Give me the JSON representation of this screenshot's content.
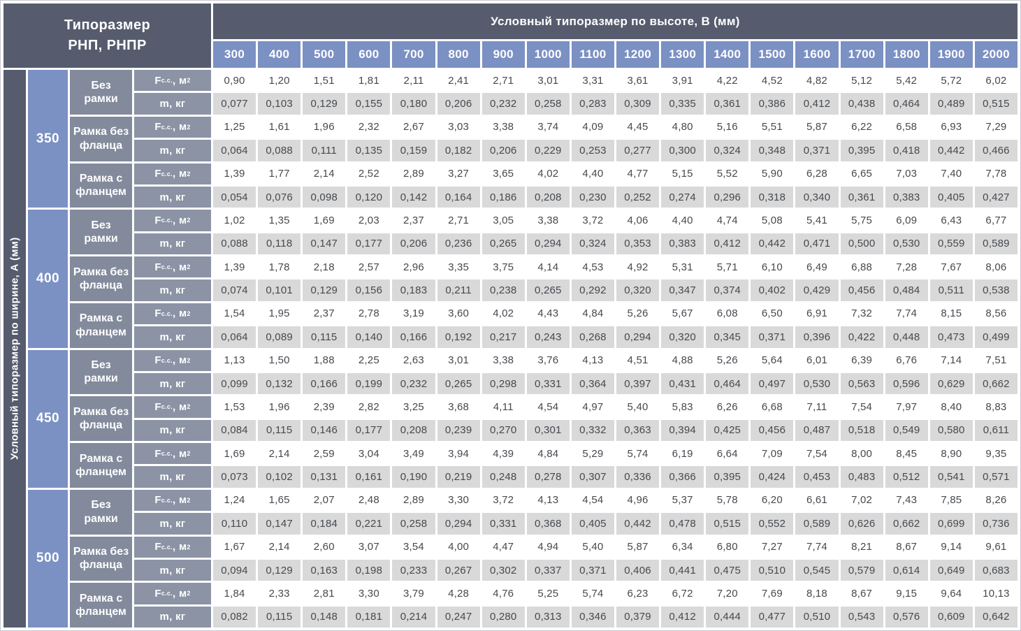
{
  "header": {
    "corner_line1": "Типоразмер",
    "corner_line2": "РНП, РНПР",
    "column_group_title": "Условный типоразмер по высоте, В (мм)",
    "columns": [
      "300",
      "400",
      "500",
      "600",
      "700",
      "800",
      "900",
      "1000",
      "1100",
      "1200",
      "1300",
      "1400",
      "1500",
      "1600",
      "1700",
      "1800",
      "1900",
      "2000"
    ]
  },
  "left_axis_title": "Условный типоразмер по ширине, А (мм)",
  "labels": {
    "f_symbol": "F",
    "f_sub": "с.с.",
    "f_unit": ", м",
    "f_sup": "2",
    "m_label": "m, кг"
  },
  "colors": {
    "dark": "#565c6e",
    "blue": "#7b90c3",
    "frame-gray": "#828a9c",
    "metric-gray": "#8b93a5",
    "row-gray": "#d9d9d9",
    "row-white": "#ffffff",
    "data-text": "#45494e"
  },
  "groups": [
    {
      "width": "350",
      "blocks": [
        {
          "frame": "Без рамки",
          "F": [
            "0,90",
            "1,20",
            "1,51",
            "1,81",
            "2,11",
            "2,41",
            "2,71",
            "3,01",
            "3,31",
            "3,61",
            "3,91",
            "4,22",
            "4,52",
            "4,82",
            "5,12",
            "5,42",
            "5,72",
            "6,02"
          ],
          "m": [
            "0,077",
            "0,103",
            "0,129",
            "0,155",
            "0,180",
            "0,206",
            "0,232",
            "0,258",
            "0,283",
            "0,309",
            "0,335",
            "0,361",
            "0,386",
            "0,412",
            "0,438",
            "0,464",
            "0,489",
            "0,515"
          ]
        },
        {
          "frame": "Рамка без фланца",
          "F": [
            "1,25",
            "1,61",
            "1,96",
            "2,32",
            "2,67",
            "3,03",
            "3,38",
            "3,74",
            "4,09",
            "4,45",
            "4,80",
            "5,16",
            "5,51",
            "5,87",
            "6,22",
            "6,58",
            "6,93",
            "7,29"
          ],
          "m": [
            "0,064",
            "0,088",
            "0,111",
            "0,135",
            "0,159",
            "0,182",
            "0,206",
            "0,229",
            "0,253",
            "0,277",
            "0,300",
            "0,324",
            "0,348",
            "0,371",
            "0,395",
            "0,418",
            "0,442",
            "0,466"
          ]
        },
        {
          "frame": "Рамка с фланцем",
          "F": [
            "1,39",
            "1,77",
            "2,14",
            "2,52",
            "2,89",
            "3,27",
            "3,65",
            "4,02",
            "4,40",
            "4,77",
            "5,15",
            "5,52",
            "5,90",
            "6,28",
            "6,65",
            "7,03",
            "7,40",
            "7,78"
          ],
          "m": [
            "0,054",
            "0,076",
            "0,098",
            "0,120",
            "0,142",
            "0,164",
            "0,186",
            "0,208",
            "0,230",
            "0,252",
            "0,274",
            "0,296",
            "0,318",
            "0,340",
            "0,361",
            "0,383",
            "0,405",
            "0,427"
          ]
        }
      ]
    },
    {
      "width": "400",
      "blocks": [
        {
          "frame": "Без рамки",
          "F": [
            "1,02",
            "1,35",
            "1,69",
            "2,03",
            "2,37",
            "2,71",
            "3,05",
            "3,38",
            "3,72",
            "4,06",
            "4,40",
            "4,74",
            "5,08",
            "5,41",
            "5,75",
            "6,09",
            "6,43",
            "6,77"
          ],
          "m": [
            "0,088",
            "0,118",
            "0,147",
            "0,177",
            "0,206",
            "0,236",
            "0,265",
            "0,294",
            "0,324",
            "0,353",
            "0,383",
            "0,412",
            "0,442",
            "0,471",
            "0,500",
            "0,530",
            "0,559",
            "0,589"
          ]
        },
        {
          "frame": "Рамка без фланца",
          "F": [
            "1,39",
            "1,78",
            "2,18",
            "2,57",
            "2,96",
            "3,35",
            "3,75",
            "4,14",
            "4,53",
            "4,92",
            "5,31",
            "5,71",
            "6,10",
            "6,49",
            "6,88",
            "7,28",
            "7,67",
            "8,06"
          ],
          "m": [
            "0,074",
            "0,101",
            "0,129",
            "0,156",
            "0,183",
            "0,211",
            "0,238",
            "0,265",
            "0,292",
            "0,320",
            "0,347",
            "0,374",
            "0,402",
            "0,429",
            "0,456",
            "0,484",
            "0,511",
            "0,538"
          ]
        },
        {
          "frame": "Рамка с фланцем",
          "F": [
            "1,54",
            "1,95",
            "2,37",
            "2,78",
            "3,19",
            "3,60",
            "4,02",
            "4,43",
            "4,84",
            "5,26",
            "5,67",
            "6,08",
            "6,50",
            "6,91",
            "7,32",
            "7,74",
            "8,15",
            "8,56"
          ],
          "m": [
            "0,064",
            "0,089",
            "0,115",
            "0,140",
            "0,166",
            "0,192",
            "0,217",
            "0,243",
            "0,268",
            "0,294",
            "0,320",
            "0,345",
            "0,371",
            "0,396",
            "0,422",
            "0,448",
            "0,473",
            "0,499"
          ]
        }
      ]
    },
    {
      "width": "450",
      "blocks": [
        {
          "frame": "Без рамки",
          "F": [
            "1,13",
            "1,50",
            "1,88",
            "2,25",
            "2,63",
            "3,01",
            "3,38",
            "3,76",
            "4,13",
            "4,51",
            "4,88",
            "5,26",
            "5,64",
            "6,01",
            "6,39",
            "6,76",
            "7,14",
            "7,51"
          ],
          "m": [
            "0,099",
            "0,132",
            "0,166",
            "0,199",
            "0,232",
            "0,265",
            "0,298",
            "0,331",
            "0,364",
            "0,397",
            "0,431",
            "0,464",
            "0,497",
            "0,530",
            "0,563",
            "0,596",
            "0,629",
            "0,662"
          ]
        },
        {
          "frame": "Рамка без фланца",
          "F": [
            "1,53",
            "1,96",
            "2,39",
            "2,82",
            "3,25",
            "3,68",
            "4,11",
            "4,54",
            "4,97",
            "5,40",
            "5,83",
            "6,26",
            "6,68",
            "7,11",
            "7,54",
            "7,97",
            "8,40",
            "8,83"
          ],
          "m": [
            "0,084",
            "0,115",
            "0,146",
            "0,177",
            "0,208",
            "0,239",
            "0,270",
            "0,301",
            "0,332",
            "0,363",
            "0,394",
            "0,425",
            "0,456",
            "0,487",
            "0,518",
            "0,549",
            "0,580",
            "0,611"
          ]
        },
        {
          "frame": "Рамка с фланцем",
          "F": [
            "1,69",
            "2,14",
            "2,59",
            "3,04",
            "3,49",
            "3,94",
            "4,39",
            "4,84",
            "5,29",
            "5,74",
            "6,19",
            "6,64",
            "7,09",
            "7,54",
            "8,00",
            "8,45",
            "8,90",
            "9,35"
          ],
          "m": [
            "0,073",
            "0,102",
            "0,131",
            "0,161",
            "0,190",
            "0,219",
            "0,248",
            "0,278",
            "0,307",
            "0,336",
            "0,366",
            "0,395",
            "0,424",
            "0,453",
            "0,483",
            "0,512",
            "0,541",
            "0,571"
          ]
        }
      ]
    },
    {
      "width": "500",
      "blocks": [
        {
          "frame": "Без рамки",
          "F": [
            "1,24",
            "1,65",
            "2,07",
            "2,48",
            "2,89",
            "3,30",
            "3,72",
            "4,13",
            "4,54",
            "4,96",
            "5,37",
            "5,78",
            "6,20",
            "6,61",
            "7,02",
            "7,43",
            "7,85",
            "8,26"
          ],
          "m": [
            "0,110",
            "0,147",
            "0,184",
            "0,221",
            "0,258",
            "0,294",
            "0,331",
            "0,368",
            "0,405",
            "0,442",
            "0,478",
            "0,515",
            "0,552",
            "0,589",
            "0,626",
            "0,662",
            "0,699",
            "0,736"
          ]
        },
        {
          "frame": "Рамка без фланца",
          "F": [
            "1,67",
            "2,14",
            "2,60",
            "3,07",
            "3,54",
            "4,00",
            "4,47",
            "4,94",
            "5,40",
            "5,87",
            "6,34",
            "6,80",
            "7,27",
            "7,74",
            "8,21",
            "8,67",
            "9,14",
            "9,61"
          ],
          "m": [
            "0,094",
            "0,129",
            "0,163",
            "0,198",
            "0,233",
            "0,267",
            "0,302",
            "0,337",
            "0,371",
            "0,406",
            "0,441",
            "0,475",
            "0,510",
            "0,545",
            "0,579",
            "0,614",
            "0,649",
            "0,683"
          ]
        },
        {
          "frame": "Рамка с фланцем",
          "F": [
            "1,84",
            "2,33",
            "2,81",
            "3,30",
            "3,79",
            "4,28",
            "4,76",
            "5,25",
            "5,74",
            "6,23",
            "6,72",
            "7,20",
            "7,69",
            "8,18",
            "8,67",
            "9,15",
            "9,64",
            "10,13"
          ],
          "m": [
            "0,082",
            "0,115",
            "0,148",
            "0,181",
            "0,214",
            "0,247",
            "0,280",
            "0,313",
            "0,346",
            "0,379",
            "0,412",
            "0,444",
            "0,477",
            "0,510",
            "0,543",
            "0,576",
            "0,609",
            "0,642"
          ]
        }
      ]
    }
  ]
}
